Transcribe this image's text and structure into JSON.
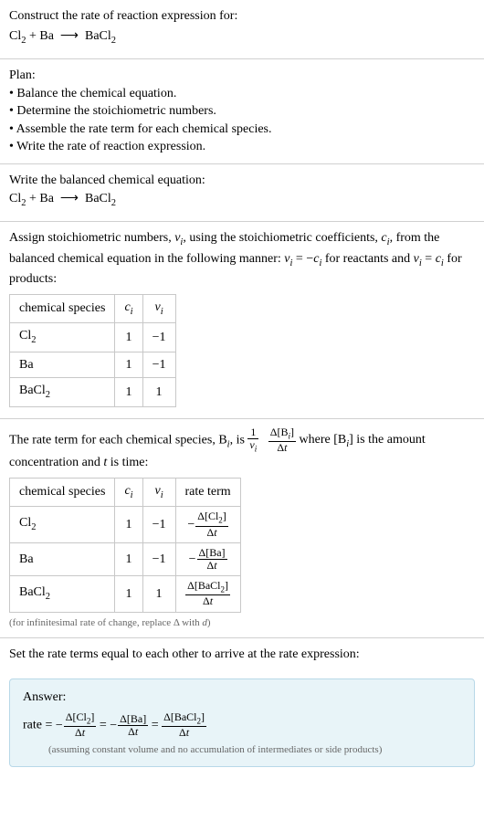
{
  "header": {
    "prompt": "Construct the rate of reaction expression for:",
    "equation_html": "Cl<sub>2</sub> + Ba &nbsp;⟶&nbsp; BaCl<sub>2</sub>"
  },
  "plan": {
    "title": "Plan:",
    "items": [
      "• Balance the chemical equation.",
      "• Determine the stoichiometric numbers.",
      "• Assemble the rate term for each chemical species.",
      "• Write the rate of reaction expression."
    ]
  },
  "balanced": {
    "intro": "Write the balanced chemical equation:",
    "equation_html": "Cl<sub>2</sub> + Ba &nbsp;⟶&nbsp; BaCl<sub>2</sub>"
  },
  "stoich": {
    "intro_html": "Assign stoichiometric numbers, <span class='ital'>ν<sub>i</sub></span>, using the stoichiometric coefficients, <span class='ital'>c<sub>i</sub></span>, from the balanced chemical equation in the following manner: <span class='ital'>ν<sub>i</sub></span> = −<span class='ital'>c<sub>i</sub></span> for reactants and <span class='ital'>ν<sub>i</sub></span> = <span class='ital'>c<sub>i</sub></span> for products:",
    "headers": {
      "species": "chemical species",
      "c_html": "<span class='ital'>c<sub>i</sub></span>",
      "nu_html": "<span class='ital'>ν<sub>i</sub></span>"
    },
    "rows": [
      {
        "species_html": "Cl<sub>2</sub>",
        "c": "1",
        "nu": "−1"
      },
      {
        "species_html": "Ba",
        "c": "1",
        "nu": "−1"
      },
      {
        "species_html": "BaCl<sub>2</sub>",
        "c": "1",
        "nu": "1"
      }
    ]
  },
  "rateterm": {
    "intro_pre": "The rate term for each chemical species, B",
    "intro_mid": ", is ",
    "frac1_num_html": "1",
    "frac1_den_html": "<span class='ital'>ν<sub>i</sub></span>",
    "frac2_num_html": "Δ[B<sub><span class='ital'>i</span></sub>]",
    "frac2_den_html": "Δ<span class='ital'>t</span>",
    "intro_post_html": " where [B<sub><span class='ital'>i</span></sub>] is the amount concentration and <span class='ital'>t</span> is time:",
    "headers": {
      "species": "chemical species",
      "c_html": "<span class='ital'>c<sub>i</sub></span>",
      "nu_html": "<span class='ital'>ν<sub>i</sub></span>",
      "rate": "rate term"
    },
    "rows": [
      {
        "species_html": "Cl<sub>2</sub>",
        "c": "1",
        "nu": "−1",
        "rate_num_html": "Δ[Cl<sub>2</sub>]",
        "rate_den_html": "Δ<span class='ital'>t</span>",
        "rate_neg": true
      },
      {
        "species_html": "Ba",
        "c": "1",
        "nu": "−1",
        "rate_num_html": "Δ[Ba]",
        "rate_den_html": "Δ<span class='ital'>t</span>",
        "rate_neg": true
      },
      {
        "species_html": "BaCl<sub>2</sub>",
        "c": "1",
        "nu": "1",
        "rate_num_html": "Δ[BaCl<sub>2</sub>]",
        "rate_den_html": "Δ<span class='ital'>t</span>",
        "rate_neg": false
      }
    ],
    "note_html": "(for infinitesimal rate of change, replace Δ with <span class='ital'>d</span>)"
  },
  "final": {
    "intro": "Set the rate terms equal to each other to arrive at the rate expression:"
  },
  "answer": {
    "title": "Answer:",
    "rate_label": "rate = ",
    "t1_num_html": "Δ[Cl<sub>2</sub>]",
    "t1_den_html": "Δ<span class='ital'>t</span>",
    "t1_neg": true,
    "eq1": " = ",
    "t2_num_html": "Δ[Ba]",
    "t2_den_html": "Δ<span class='ital'>t</span>",
    "t2_neg": true,
    "eq2": " = ",
    "t3_num_html": "Δ[BaCl<sub>2</sub>]",
    "t3_den_html": "Δ<span class='ital'>t</span>",
    "t3_neg": false,
    "note": "(assuming constant volume and no accumulation of intermediates or side products)"
  },
  "colors": {
    "divider": "#d0d0d0",
    "table_border": "#c8c8c8",
    "note_text": "#666666",
    "answer_bg": "#e8f4f8",
    "answer_border": "#b8d8e8",
    "background": "#ffffff",
    "text": "#000000"
  }
}
